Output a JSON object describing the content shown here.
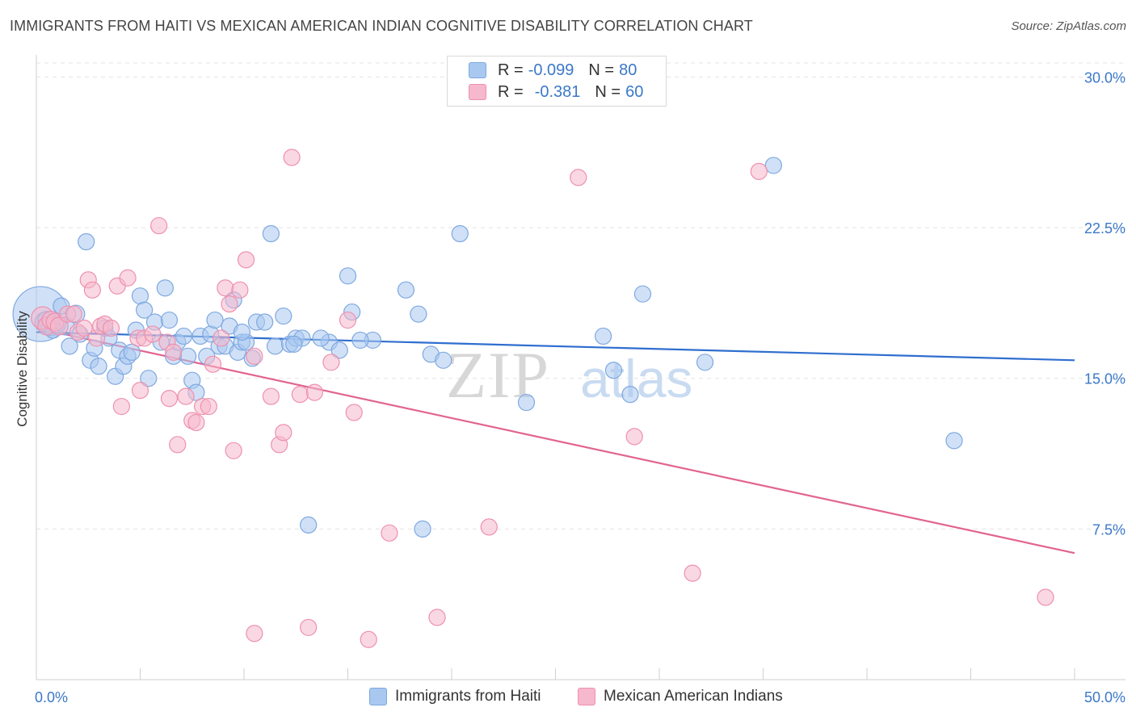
{
  "title": "IMMIGRANTS FROM HAITI VS MEXICAN AMERICAN INDIAN COGNITIVE DISABILITY CORRELATION CHART",
  "source": "Source: ZipAtlas.com",
  "watermark": {
    "zip": "ZIP",
    "atlas": "atlas"
  },
  "legend": {
    "r_label": "R =",
    "n_label": "N =",
    "rows": [
      {
        "r": "-0.099",
        "n": "80",
        "color": "#a9c8f0",
        "border": "#7ea8e0"
      },
      {
        "r": "-0.381",
        "n": "60",
        "color": "#f6b8cc",
        "border": "#ee90ad"
      }
    ]
  },
  "chart_data": {
    "type": "scatter",
    "title": "IMMIGRANTS FROM HAITI VS MEXICAN AMERICAN INDIAN COGNITIVE DISABILITY CORRELATION CHART",
    "xlabel": "",
    "ylabel": "Cognitive Disability",
    "xlim": [
      0,
      50
    ],
    "ylim": [
      0,
      30.7
    ],
    "x_tick_labels": [
      "0.0%",
      "50.0%"
    ],
    "y_ticks": [
      7.5,
      15.0,
      22.5,
      30.0
    ],
    "y_tick_labels": [
      "7.5%",
      "15.0%",
      "22.5%",
      "30.0%"
    ],
    "grid": true,
    "legend_position": "bottom",
    "series": [
      {
        "name": "Immigrants from Haiti",
        "color": "#a9c8f0",
        "stroke": "#7ea8e0",
        "trend_color": "#2f6ecf",
        "trend": [
          [
            0,
            17.3
          ],
          [
            50,
            15.9
          ]
        ],
        "points": [
          [
            0.2,
            18.2
          ],
          [
            0.4,
            17.8
          ],
          [
            0.5,
            17.9
          ],
          [
            0.7,
            17.6
          ],
          [
            0.8,
            17.4
          ],
          [
            1.0,
            17.7
          ],
          [
            1.2,
            18.6
          ],
          [
            1.4,
            17.6
          ],
          [
            1.6,
            16.6
          ],
          [
            1.9,
            18.2
          ],
          [
            2.1,
            17.2
          ],
          [
            2.4,
            21.8
          ],
          [
            2.6,
            15.9
          ],
          [
            2.8,
            16.5
          ],
          [
            3.0,
            15.6
          ],
          [
            3.3,
            17.5
          ],
          [
            3.5,
            17.0
          ],
          [
            3.8,
            15.1
          ],
          [
            4.0,
            16.4
          ],
          [
            4.2,
            15.6
          ],
          [
            4.4,
            16.1
          ],
          [
            4.6,
            16.3
          ],
          [
            4.8,
            17.4
          ],
          [
            5.0,
            19.1
          ],
          [
            5.2,
            18.4
          ],
          [
            5.4,
            15.0
          ],
          [
            5.7,
            17.8
          ],
          [
            6.0,
            16.8
          ],
          [
            6.2,
            19.5
          ],
          [
            6.4,
            17.9
          ],
          [
            6.6,
            16.1
          ],
          [
            6.8,
            16.8
          ],
          [
            7.1,
            17.1
          ],
          [
            7.3,
            16.1
          ],
          [
            7.5,
            14.9
          ],
          [
            7.7,
            14.3
          ],
          [
            7.9,
            17.1
          ],
          [
            8.2,
            16.1
          ],
          [
            8.4,
            17.2
          ],
          [
            8.6,
            17.9
          ],
          [
            8.8,
            16.6
          ],
          [
            9.1,
            16.6
          ],
          [
            9.3,
            17.6
          ],
          [
            9.5,
            18.9
          ],
          [
            9.7,
            16.3
          ],
          [
            9.9,
            16.8
          ],
          [
            10.1,
            16.8
          ],
          [
            10.4,
            16.0
          ],
          [
            10.6,
            17.8
          ],
          [
            11.0,
            17.8
          ],
          [
            11.3,
            22.2
          ],
          [
            11.5,
            16.6
          ],
          [
            11.9,
            18.1
          ],
          [
            12.2,
            16.7
          ],
          [
            12.5,
            17.0
          ],
          [
            12.8,
            17.0
          ],
          [
            13.1,
            7.7
          ],
          [
            14.1,
            16.8
          ],
          [
            14.6,
            16.4
          ],
          [
            15.0,
            20.1
          ],
          [
            15.2,
            18.3
          ],
          [
            16.2,
            16.9
          ],
          [
            17.8,
            19.4
          ],
          [
            18.6,
            7.5
          ],
          [
            18.4,
            18.2
          ],
          [
            19.0,
            16.2
          ],
          [
            19.6,
            15.9
          ],
          [
            20.4,
            22.2
          ],
          [
            23.6,
            13.8
          ],
          [
            27.3,
            17.1
          ],
          [
            27.8,
            15.4
          ],
          [
            28.6,
            14.2
          ],
          [
            29.2,
            19.2
          ],
          [
            32.2,
            15.8
          ],
          [
            35.5,
            25.6
          ],
          [
            44.2,
            11.9
          ],
          [
            13.7,
            17.0
          ],
          [
            12.4,
            16.7
          ],
          [
            9.9,
            17.3
          ],
          [
            15.6,
            16.9
          ]
        ],
        "sizes": [
          34,
          12,
          11,
          12,
          10,
          11,
          10,
          11,
          10,
          11,
          10,
          10,
          10,
          10,
          10,
          10,
          10,
          10,
          10,
          10,
          10,
          10,
          10,
          10,
          10,
          10,
          10,
          10,
          10,
          10,
          10,
          10,
          10,
          10,
          10,
          10,
          10,
          10,
          10,
          10,
          10,
          10,
          10,
          10,
          10,
          10,
          10,
          10,
          10,
          10,
          10,
          10,
          10,
          10,
          10,
          10,
          10,
          10,
          10,
          10,
          10,
          10,
          10,
          10,
          10,
          10,
          10,
          10,
          10,
          10,
          10,
          10,
          10,
          10,
          10,
          10,
          10,
          10,
          10,
          10
        ]
      },
      {
        "name": "Mexican American Indians",
        "color": "#f6b8cc",
        "stroke": "#ee90ad",
        "trend_color": "#e2648f",
        "trend": [
          [
            0,
            17.5
          ],
          [
            50,
            6.3
          ]
        ],
        "points": [
          [
            0.3,
            18.0
          ],
          [
            0.5,
            17.6
          ],
          [
            0.7,
            17.9
          ],
          [
            0.9,
            17.8
          ],
          [
            1.1,
            17.6
          ],
          [
            1.5,
            18.2
          ],
          [
            1.8,
            18.2
          ],
          [
            2.0,
            17.3
          ],
          [
            2.3,
            17.5
          ],
          [
            2.5,
            19.9
          ],
          [
            2.7,
            19.4
          ],
          [
            2.9,
            17.0
          ],
          [
            3.1,
            17.6
          ],
          [
            3.3,
            17.7
          ],
          [
            3.6,
            17.5
          ],
          [
            3.9,
            19.6
          ],
          [
            4.1,
            13.6
          ],
          [
            4.4,
            20.0
          ],
          [
            4.9,
            17.0
          ],
          [
            5.0,
            14.4
          ],
          [
            5.2,
            17.0
          ],
          [
            5.6,
            17.2
          ],
          [
            5.9,
            22.6
          ],
          [
            6.3,
            16.8
          ],
          [
            6.6,
            16.3
          ],
          [
            6.8,
            11.7
          ],
          [
            7.2,
            14.1
          ],
          [
            7.5,
            12.9
          ],
          [
            7.7,
            12.8
          ],
          [
            8.0,
            13.6
          ],
          [
            8.3,
            13.6
          ],
          [
            8.5,
            15.7
          ],
          [
            8.9,
            17.0
          ],
          [
            9.1,
            19.5
          ],
          [
            9.3,
            18.7
          ],
          [
            9.5,
            11.4
          ],
          [
            9.8,
            19.4
          ],
          [
            10.1,
            20.9
          ],
          [
            10.5,
            16.1
          ],
          [
            11.3,
            14.1
          ],
          [
            11.7,
            11.7
          ],
          [
            11.9,
            12.3
          ],
          [
            12.3,
            26.0
          ],
          [
            12.7,
            14.2
          ],
          [
            13.1,
            2.6
          ],
          [
            13.4,
            14.3
          ],
          [
            14.2,
            15.8
          ],
          [
            15.0,
            17.9
          ],
          [
            15.3,
            13.3
          ],
          [
            16.0,
            2.0
          ],
          [
            17.0,
            7.3
          ],
          [
            19.3,
            3.1
          ],
          [
            21.8,
            7.6
          ],
          [
            26.1,
            25.0
          ],
          [
            28.8,
            12.1
          ],
          [
            31.6,
            5.3
          ],
          [
            34.8,
            25.3
          ],
          [
            48.6,
            4.1
          ],
          [
            10.5,
            2.3
          ],
          [
            6.4,
            14.0
          ]
        ],
        "sizes": [
          14,
          11,
          11,
          11,
          11,
          10,
          10,
          10,
          10,
          10,
          10,
          10,
          10,
          10,
          10,
          10,
          10,
          10,
          10,
          10,
          10,
          10,
          10,
          10,
          10,
          10,
          10,
          10,
          10,
          10,
          10,
          10,
          10,
          10,
          10,
          10,
          10,
          10,
          10,
          10,
          10,
          10,
          10,
          10,
          10,
          10,
          10,
          10,
          10,
          10,
          10,
          10,
          10,
          10,
          10,
          10,
          10,
          10,
          10,
          10
        ]
      }
    ]
  }
}
